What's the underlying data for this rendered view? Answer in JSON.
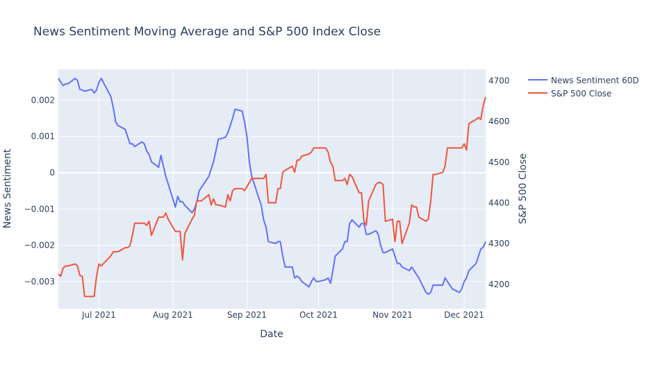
{
  "chart_data": {
    "type": "line",
    "title": "News Sentiment Moving Average and S&P 500 Index Close",
    "xlabel": "Date",
    "ylabel_left": "News Sentiment",
    "ylabel_right": "S&P 500 Close",
    "x_ticks": [
      "2021-07-01",
      "2021-08-01",
      "2021-09-01",
      "2021-10-01",
      "2021-11-01",
      "2021-12-01"
    ],
    "x_tick_labels": [
      "Jul 2021",
      "Aug 2021",
      "Sep 2021",
      "Oct 2021",
      "Nov 2021",
      "Dec 2021"
    ],
    "x_range": [
      "2021-06-14",
      "2021-12-10"
    ],
    "y_left_range": [
      -0.00375,
      0.00285
    ],
    "y_left_ticks": [
      0.002,
      0.001,
      0,
      -0.001,
      -0.002,
      -0.003
    ],
    "y_left_tick_labels": [
      "0.002",
      "0.001",
      "0",
      "−0.001",
      "−0.002",
      "−0.003"
    ],
    "y_right_range": [
      4140,
      4728
    ],
    "y_right_ticks": [
      4200,
      4300,
      4400,
      4500,
      4600,
      4700
    ],
    "y_right_tick_labels": [
      "4200",
      "4300",
      "4400",
      "4500",
      "4600",
      "4700"
    ],
    "grid": true,
    "legend_position": "top-right",
    "series": [
      {
        "name": "News Sentiment 60D",
        "axis": "left",
        "color": "#636efa",
        "points": [
          [
            "2021-06-14",
            0.0026
          ],
          [
            "2021-06-15",
            0.0025
          ],
          [
            "2021-06-16",
            0.0024
          ],
          [
            "2021-06-17",
            0.00245
          ],
          [
            "2021-06-18",
            0.00245
          ],
          [
            "2021-06-21",
            0.0026
          ],
          [
            "2021-06-22",
            0.00255
          ],
          [
            "2021-06-23",
            0.0023
          ],
          [
            "2021-06-24",
            0.00228
          ],
          [
            "2021-06-25",
            0.00225
          ],
          [
            "2021-06-28",
            0.0023
          ],
          [
            "2021-06-29",
            0.0022
          ],
          [
            "2021-06-30",
            0.00228
          ],
          [
            "2021-07-01",
            0.0025
          ],
          [
            "2021-07-02",
            0.0026
          ],
          [
            "2021-07-06",
            0.0021
          ],
          [
            "2021-07-07",
            0.0018
          ],
          [
            "2021-07-08",
            0.0014
          ],
          [
            "2021-07-09",
            0.0013
          ],
          [
            "2021-07-12",
            0.0012
          ],
          [
            "2021-07-13",
            0.001
          ],
          [
            "2021-07-14",
            0.0008
          ],
          [
            "2021-07-15",
            0.0008
          ],
          [
            "2021-07-16",
            0.00072
          ],
          [
            "2021-07-19",
            0.00085
          ],
          [
            "2021-07-20",
            0.0008
          ],
          [
            "2021-07-21",
            0.0006
          ],
          [
            "2021-07-22",
            0.0005
          ],
          [
            "2021-07-23",
            0.0003
          ],
          [
            "2021-07-26",
            0.00015
          ],
          [
            "2021-07-27",
            0.00048
          ],
          [
            "2021-07-28",
            0.00018
          ],
          [
            "2021-07-29",
            -0.0001
          ],
          [
            "2021-07-30",
            -0.0003
          ],
          [
            "2021-08-02",
            -0.00095
          ],
          [
            "2021-08-03",
            -0.00065
          ],
          [
            "2021-08-04",
            -0.0008
          ],
          [
            "2021-08-05",
            -0.0008
          ],
          [
            "2021-08-06",
            -0.0009
          ],
          [
            "2021-08-09",
            -0.0011
          ],
          [
            "2021-08-10",
            -0.001
          ],
          [
            "2021-08-11",
            -0.0008
          ],
          [
            "2021-08-12",
            -0.0005
          ],
          [
            "2021-08-13",
            -0.0004
          ],
          [
            "2021-08-16",
            -0.0001
          ],
          [
            "2021-08-17",
            0.0001
          ],
          [
            "2021-08-18",
            0.0003
          ],
          [
            "2021-08-19",
            0.0006
          ],
          [
            "2021-08-20",
            0.00092
          ],
          [
            "2021-08-23",
            0.00098
          ],
          [
            "2021-08-24",
            0.0011
          ],
          [
            "2021-08-25",
            0.0013
          ],
          [
            "2021-08-26",
            0.0015
          ],
          [
            "2021-08-27",
            0.00175
          ],
          [
            "2021-08-30",
            0.0017
          ],
          [
            "2021-08-31",
            0.0014
          ],
          [
            "2021-09-01",
            0.001
          ],
          [
            "2021-09-02",
            0.0003
          ],
          [
            "2021-09-03",
            -0.0001
          ],
          [
            "2021-09-07",
            -0.0009
          ],
          [
            "2021-09-08",
            -0.0013
          ],
          [
            "2021-09-09",
            -0.0015
          ],
          [
            "2021-09-10",
            -0.0019
          ],
          [
            "2021-09-13",
            -0.00195
          ],
          [
            "2021-09-14",
            -0.0019
          ],
          [
            "2021-09-15",
            -0.0019
          ],
          [
            "2021-09-16",
            -0.0023
          ],
          [
            "2021-09-17",
            -0.0026
          ],
          [
            "2021-09-20",
            -0.0026
          ],
          [
            "2021-09-21",
            -0.0029
          ],
          [
            "2021-09-22",
            -0.00285
          ],
          [
            "2021-09-23",
            -0.0029
          ],
          [
            "2021-09-24",
            -0.003
          ],
          [
            "2021-09-27",
            -0.00315
          ],
          [
            "2021-09-28",
            -0.003
          ],
          [
            "2021-09-29",
            -0.0029
          ],
          [
            "2021-09-30",
            -0.003
          ],
          [
            "2021-10-01",
            -0.003
          ],
          [
            "2021-10-04",
            -0.00295
          ],
          [
            "2021-10-05",
            -0.0029
          ],
          [
            "2021-10-06",
            -0.00305
          ],
          [
            "2021-10-07",
            -0.0027
          ],
          [
            "2021-10-08",
            -0.0023
          ],
          [
            "2021-10-11",
            -0.0021
          ],
          [
            "2021-10-12",
            -0.0019
          ],
          [
            "2021-10-13",
            -0.0019
          ],
          [
            "2021-10-14",
            -0.0014
          ],
          [
            "2021-10-15",
            -0.0013
          ],
          [
            "2021-10-18",
            -0.0015
          ],
          [
            "2021-10-19",
            -0.0014
          ],
          [
            "2021-10-20",
            -0.0014
          ],
          [
            "2021-10-21",
            -0.0017
          ],
          [
            "2021-10-22",
            -0.0017
          ],
          [
            "2021-10-25",
            -0.0016
          ],
          [
            "2021-10-26",
            -0.0017
          ],
          [
            "2021-10-27",
            -0.002
          ],
          [
            "2021-10-28",
            -0.0022
          ],
          [
            "2021-10-29",
            -0.0022
          ],
          [
            "2021-11-01",
            -0.0021
          ],
          [
            "2021-11-02",
            -0.0023
          ],
          [
            "2021-11-03",
            -0.0025
          ],
          [
            "2021-11-04",
            -0.0025
          ],
          [
            "2021-11-05",
            -0.0026
          ],
          [
            "2021-11-08",
            -0.0027
          ],
          [
            "2021-11-09",
            -0.0026
          ],
          [
            "2021-11-10",
            -0.0027
          ],
          [
            "2021-11-11",
            -0.0028
          ],
          [
            "2021-11-12",
            -0.0029
          ],
          [
            "2021-11-15",
            -0.0033
          ],
          [
            "2021-11-16",
            -0.00335
          ],
          [
            "2021-11-17",
            -0.0033
          ],
          [
            "2021-11-18",
            -0.0031
          ],
          [
            "2021-11-19",
            -0.0031
          ],
          [
            "2021-11-22",
            -0.0031
          ],
          [
            "2021-11-23",
            -0.0029
          ],
          [
            "2021-11-24",
            -0.003
          ],
          [
            "2021-11-26",
            -0.0032
          ],
          [
            "2021-11-29",
            -0.0033
          ],
          [
            "2021-11-30",
            -0.0032
          ],
          [
            "2021-12-01",
            -0.003
          ],
          [
            "2021-12-02",
            -0.0029
          ],
          [
            "2021-12-03",
            -0.0027
          ],
          [
            "2021-12-06",
            -0.0025
          ],
          [
            "2021-12-07",
            -0.0023
          ],
          [
            "2021-12-08",
            -0.0021
          ],
          [
            "2021-12-09",
            -0.00205
          ],
          [
            "2021-12-10",
            -0.0019
          ]
        ]
      },
      {
        "name": "S&P 500 Close",
        "axis": "right",
        "color": "#ef553b",
        "points": [
          [
            "2021-06-14",
            4225
          ],
          [
            "2021-06-15",
            4220
          ],
          [
            "2021-06-16",
            4240
          ],
          [
            "2021-06-17",
            4245
          ],
          [
            "2021-06-18",
            4245
          ],
          [
            "2021-06-21",
            4250
          ],
          [
            "2021-06-22",
            4245
          ],
          [
            "2021-06-23",
            4222
          ],
          [
            "2021-06-24",
            4220
          ],
          [
            "2021-06-25",
            4170
          ],
          [
            "2021-06-28",
            4170
          ],
          [
            "2021-06-29",
            4170
          ],
          [
            "2021-06-30",
            4220
          ],
          [
            "2021-07-01",
            4250
          ],
          [
            "2021-07-02",
            4245
          ],
          [
            "2021-07-06",
            4270
          ],
          [
            "2021-07-07",
            4280
          ],
          [
            "2021-07-08",
            4280
          ],
          [
            "2021-07-09",
            4280
          ],
          [
            "2021-07-12",
            4290
          ],
          [
            "2021-07-13",
            4290
          ],
          [
            "2021-07-14",
            4295
          ],
          [
            "2021-07-15",
            4320
          ],
          [
            "2021-07-16",
            4350
          ],
          [
            "2021-07-19",
            4350
          ],
          [
            "2021-07-20",
            4350
          ],
          [
            "2021-07-21",
            4345
          ],
          [
            "2021-07-22",
            4355
          ],
          [
            "2021-07-23",
            4320
          ],
          [
            "2021-07-26",
            4365
          ],
          [
            "2021-07-27",
            4365
          ],
          [
            "2021-07-28",
            4365
          ],
          [
            "2021-07-29",
            4375
          ],
          [
            "2021-07-30",
            4360
          ],
          [
            "2021-08-02",
            4330
          ],
          [
            "2021-08-03",
            4330
          ],
          [
            "2021-08-04",
            4330
          ],
          [
            "2021-08-05",
            4260
          ],
          [
            "2021-08-06",
            4325
          ],
          [
            "2021-08-09",
            4360
          ],
          [
            "2021-08-10",
            4370
          ],
          [
            "2021-08-11",
            4405
          ],
          [
            "2021-08-12",
            4405
          ],
          [
            "2021-08-13",
            4405
          ],
          [
            "2021-08-16",
            4420
          ],
          [
            "2021-08-17",
            4395
          ],
          [
            "2021-08-18",
            4410
          ],
          [
            "2021-08-19",
            4395
          ],
          [
            "2021-08-20",
            4395
          ],
          [
            "2021-08-23",
            4390
          ],
          [
            "2021-08-24",
            4420
          ],
          [
            "2021-08-25",
            4405
          ],
          [
            "2021-08-26",
            4430
          ],
          [
            "2021-08-27",
            4435
          ],
          [
            "2021-08-30",
            4435
          ],
          [
            "2021-08-31",
            4430
          ],
          [
            "2021-09-01",
            4440
          ],
          [
            "2021-09-02",
            4450
          ],
          [
            "2021-09-03",
            4460
          ],
          [
            "2021-09-07",
            4460
          ],
          [
            "2021-09-08",
            4460
          ],
          [
            "2021-09-09",
            4470
          ],
          [
            "2021-09-10",
            4400
          ],
          [
            "2021-09-13",
            4400
          ],
          [
            "2021-09-14",
            4435
          ],
          [
            "2021-09-15",
            4435
          ],
          [
            "2021-09-16",
            4475
          ],
          [
            "2021-09-17",
            4480
          ],
          [
            "2021-09-20",
            4490
          ],
          [
            "2021-09-21",
            4475
          ],
          [
            "2021-09-22",
            4505
          ],
          [
            "2021-09-23",
            4505
          ],
          [
            "2021-09-24",
            4515
          ],
          [
            "2021-09-27",
            4520
          ],
          [
            "2021-09-28",
            4525
          ],
          [
            "2021-09-29",
            4535
          ],
          [
            "2021-09-30",
            4535
          ],
          [
            "2021-10-01",
            4535
          ],
          [
            "2021-10-04",
            4535
          ],
          [
            "2021-10-05",
            4525
          ],
          [
            "2021-10-06",
            4500
          ],
          [
            "2021-10-07",
            4490
          ],
          [
            "2021-10-08",
            4455
          ],
          [
            "2021-10-11",
            4455
          ],
          [
            "2021-10-12",
            4460
          ],
          [
            "2021-10-13",
            4445
          ],
          [
            "2021-10-14",
            4470
          ],
          [
            "2021-10-15",
            4465
          ],
          [
            "2021-10-18",
            4425
          ],
          [
            "2021-10-19",
            4425
          ],
          [
            "2021-10-20",
            4355
          ],
          [
            "2021-10-21",
            4345
          ],
          [
            "2021-10-22",
            4405
          ],
          [
            "2021-10-25",
            4445
          ],
          [
            "2021-10-26",
            4450
          ],
          [
            "2021-10-27",
            4450
          ],
          [
            "2021-10-28",
            4445
          ],
          [
            "2021-10-29",
            4355
          ],
          [
            "2021-11-01",
            4360
          ],
          [
            "2021-11-02",
            4305
          ],
          [
            "2021-11-03",
            4355
          ],
          [
            "2021-11-04",
            4355
          ],
          [
            "2021-11-05",
            4300
          ],
          [
            "2021-11-08",
            4350
          ],
          [
            "2021-11-09",
            4395
          ],
          [
            "2021-11-10",
            4390
          ],
          [
            "2021-11-11",
            4390
          ],
          [
            "2021-11-12",
            4365
          ],
          [
            "2021-11-15",
            4355
          ],
          [
            "2021-11-16",
            4360
          ],
          [
            "2021-11-17",
            4405
          ],
          [
            "2021-11-18",
            4470
          ],
          [
            "2021-11-19",
            4470
          ],
          [
            "2021-11-22",
            4475
          ],
          [
            "2021-11-23",
            4490
          ],
          [
            "2021-11-24",
            4535
          ],
          [
            "2021-11-26",
            4535
          ],
          [
            "2021-11-29",
            4535
          ],
          [
            "2021-11-30",
            4535
          ],
          [
            "2021-12-01",
            4545
          ],
          [
            "2021-12-02",
            4530
          ],
          [
            "2021-12-03",
            4595
          ],
          [
            "2021-12-06",
            4605
          ],
          [
            "2021-12-07",
            4610
          ],
          [
            "2021-12-08",
            4605
          ],
          [
            "2021-12-09",
            4640
          ],
          [
            "2021-12-10",
            4660
          ]
        ]
      }
    ]
  }
}
